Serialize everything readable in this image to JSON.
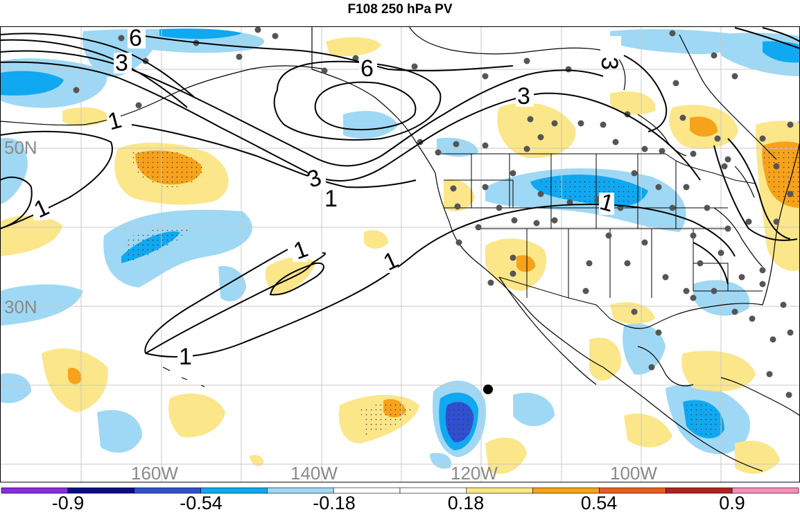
{
  "title": "F108 250 hPa PV",
  "latitude_labels": [
    "50N",
    "30N"
  ],
  "longitude_labels": [
    "160W",
    "140W",
    "120W",
    "100W"
  ],
  "contour_labels": [
    "6",
    "3",
    "6",
    "3",
    "3",
    "1",
    "3",
    "1",
    "1",
    "1",
    "1",
    "1",
    "1"
  ],
  "colorbar": {
    "colors": [
      "#8a2be2",
      "#0c0c8a",
      "#3050d0",
      "#10a8f0",
      "#9fd8f4",
      "#ffffff",
      "#ffffff",
      "#fbe68a",
      "#f7a21b",
      "#ee5a20",
      "#b22222",
      "#f58fb6"
    ],
    "labels": [
      "-0.9",
      "-0.54",
      "-0.18",
      "0.18",
      "0.54",
      "0.9"
    ]
  }
}
